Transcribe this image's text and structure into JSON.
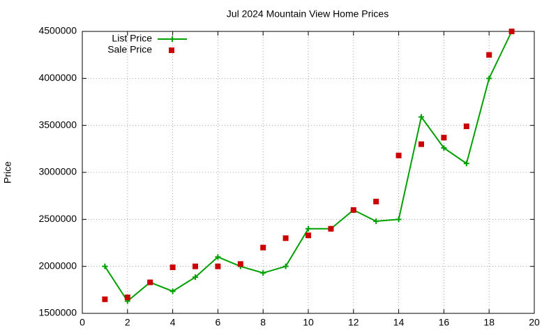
{
  "chart_data": {
    "type": "line",
    "title": "Jul 2024 Mountain View Home Prices",
    "y_label": "Price",
    "x": [
      1,
      2,
      3,
      4,
      5,
      6,
      7,
      8,
      9,
      10,
      11,
      12,
      13,
      14,
      15,
      16,
      17,
      18,
      19
    ],
    "series": [
      {
        "name": "List Price",
        "color": "#00a000",
        "style": "line-points",
        "values": [
          2000000,
          1630000,
          1830000,
          1735000,
          1885000,
          2100000,
          2000000,
          1930000,
          2000000,
          2400000,
          2400000,
          2600000,
          2480000,
          2500000,
          3590000,
          3260000,
          3095000,
          4000000,
          4500000
        ]
      },
      {
        "name": "Sale Price",
        "color": "#cc0000",
        "style": "points",
        "values": [
          1650000,
          1670000,
          1830000,
          1990000,
          2000000,
          2000000,
          2025000,
          2200000,
          2300000,
          2330000,
          2400000,
          2600000,
          2690000,
          3180000,
          3300000,
          3370000,
          3490000,
          4250000,
          4500000
        ]
      }
    ],
    "xlim": [
      0,
      20
    ],
    "xticks": [
      0,
      2,
      4,
      6,
      8,
      10,
      12,
      14,
      16,
      18,
      20
    ],
    "ylim": [
      1500000,
      4500000
    ],
    "yticks": [
      1500000,
      2000000,
      2500000,
      3000000,
      3500000,
      4000000,
      4500000
    ],
    "grid": true,
    "legend": "upper-left"
  }
}
